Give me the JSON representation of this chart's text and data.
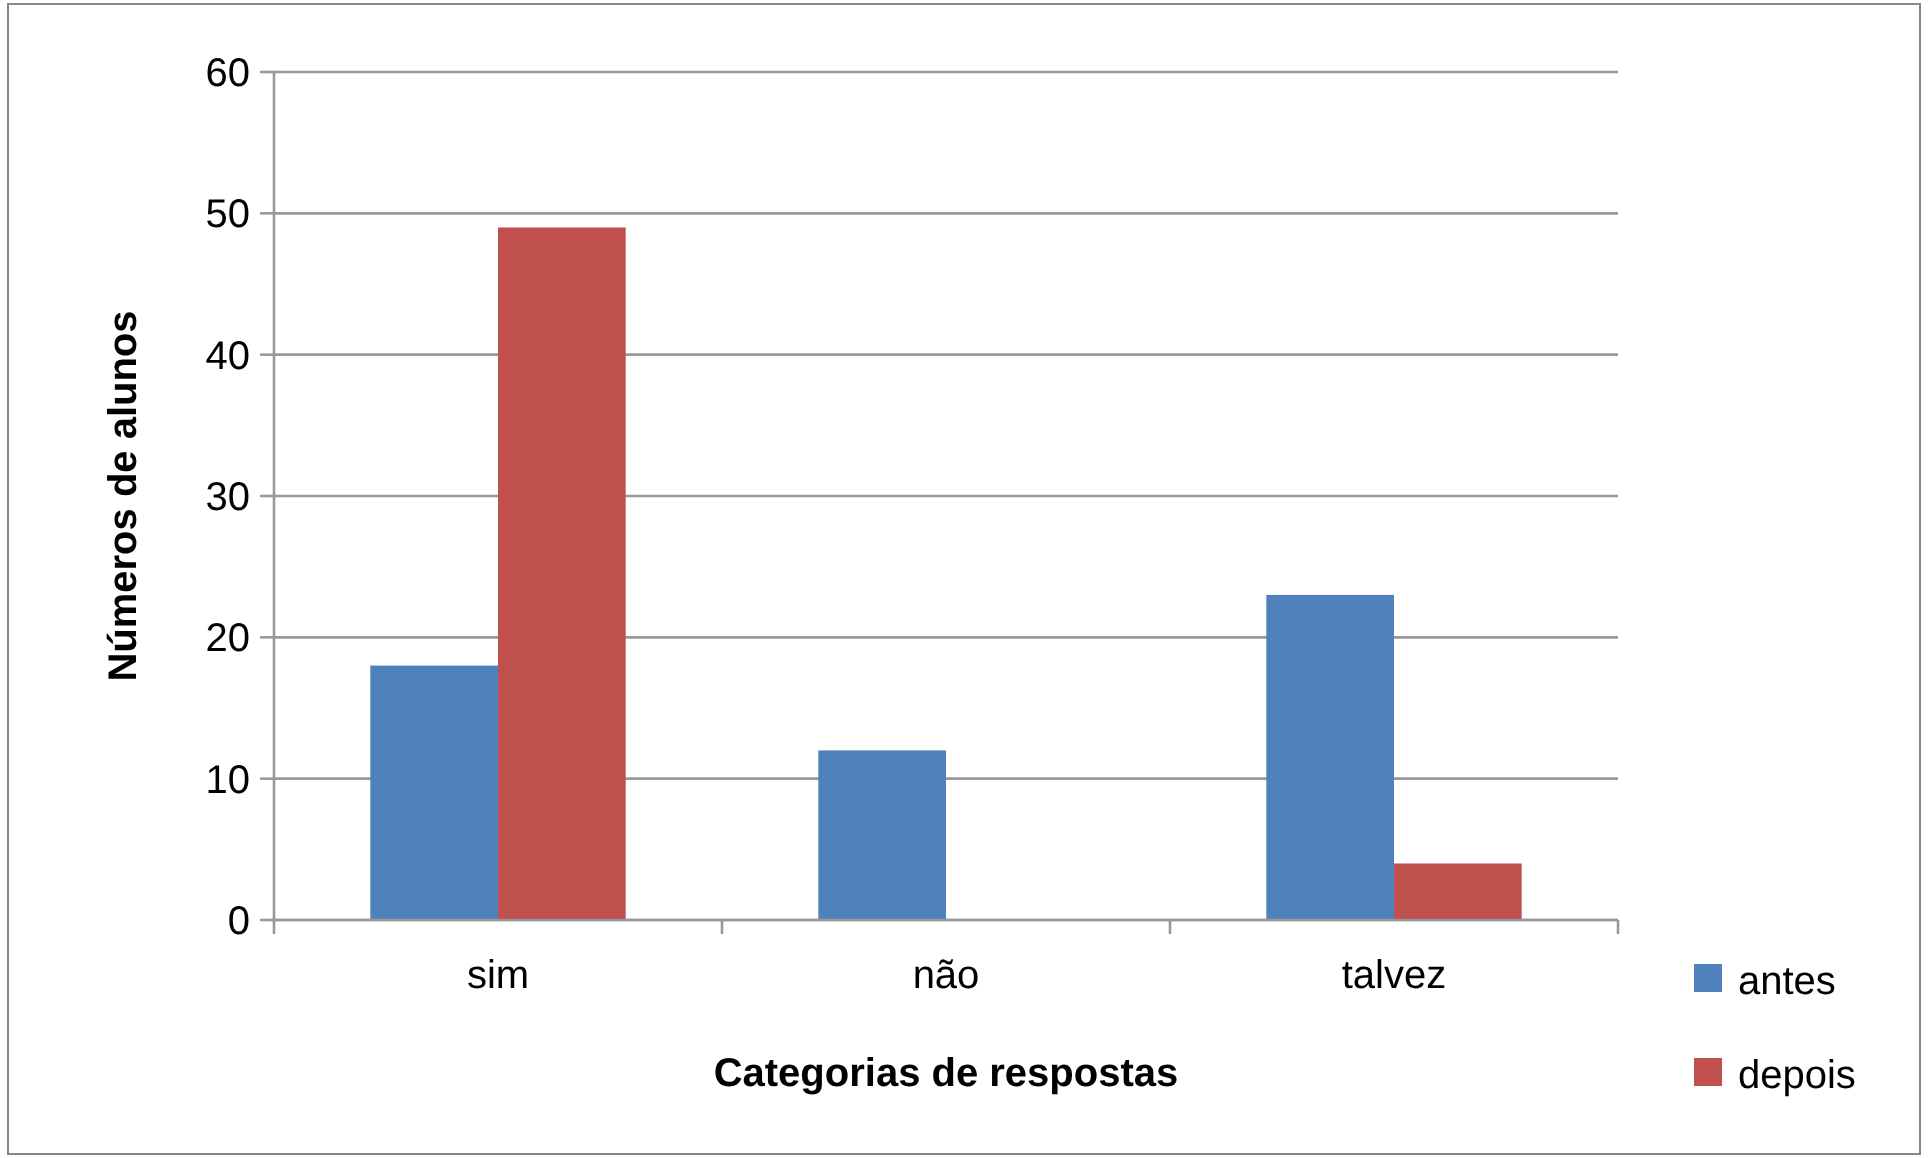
{
  "chart_data": {
    "type": "bar",
    "xlabel": "Categorias de respostas",
    "ylabel": "Números de alunos",
    "categories": [
      "sim",
      "não",
      "talvez"
    ],
    "series": [
      {
        "name": "antes",
        "color": "#4f81bd",
        "values": [
          18,
          12,
          23
        ]
      },
      {
        "name": "depois",
        "color": "#c0504d",
        "values": [
          49,
          0,
          4
        ]
      }
    ],
    "ylim": [
      0,
      60
    ],
    "yticks": [
      0,
      10,
      20,
      30,
      40,
      50,
      60
    ],
    "grid": "y",
    "legend": "bottom right"
  }
}
